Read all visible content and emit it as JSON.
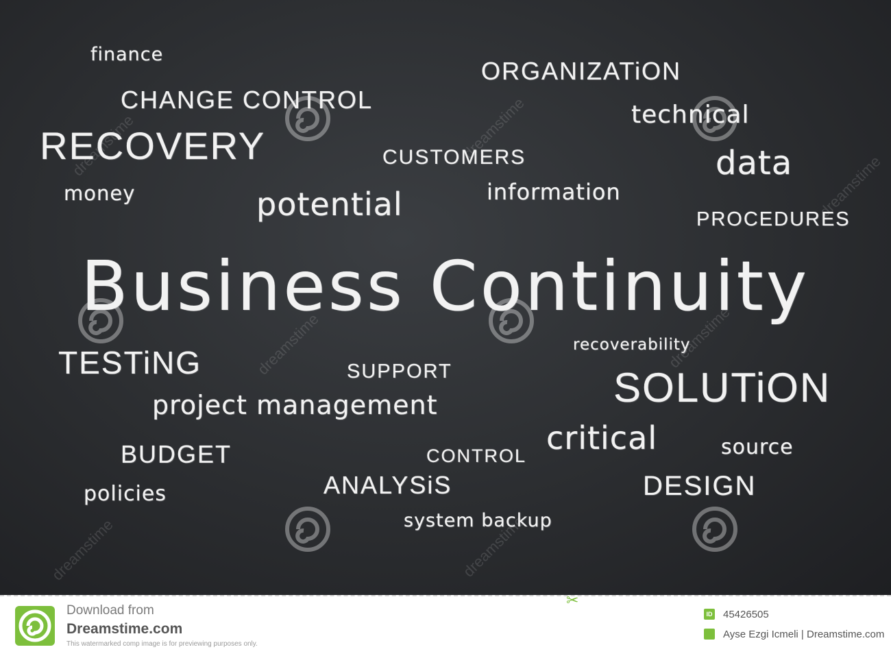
{
  "board": {
    "background": "#2b2d30",
    "chalk_color": "#f2f2f2",
    "main_title": "Business Continuity",
    "words": {
      "finance": "finance",
      "change_control": "CHANGE CONTROL",
      "recovery": "RECOVERY",
      "money": "money",
      "potential": "potential",
      "customers": "CUSTOMERS",
      "information": "information",
      "organization": "ORGANIZATiON",
      "technical": "technical",
      "data": "data",
      "procedures": "PROCEDURES",
      "testing": "TESTiNG",
      "support": "SUPPORT",
      "project_management": "project management",
      "recoverability": "recoverability",
      "solution": "SOLUTiON",
      "budget": "BUDGET",
      "critical": "critical",
      "source": "source",
      "control": "CONTROL",
      "policies": "policies",
      "analysis": "ANALYSiS",
      "design": "DESIGN",
      "system_backup": "system backup"
    },
    "watermark_text": "dreamstime"
  },
  "footer": {
    "download_label": "Download from",
    "site_name": "Dreamstime.com",
    "note": "This watermarked comp image is for previewing purposes only.",
    "id_badge": "ID",
    "image_id": "45426505",
    "credit": "Ayse Ezgi Icmeli | Dreamstime.com",
    "accent_color": "#7dbf3c"
  }
}
